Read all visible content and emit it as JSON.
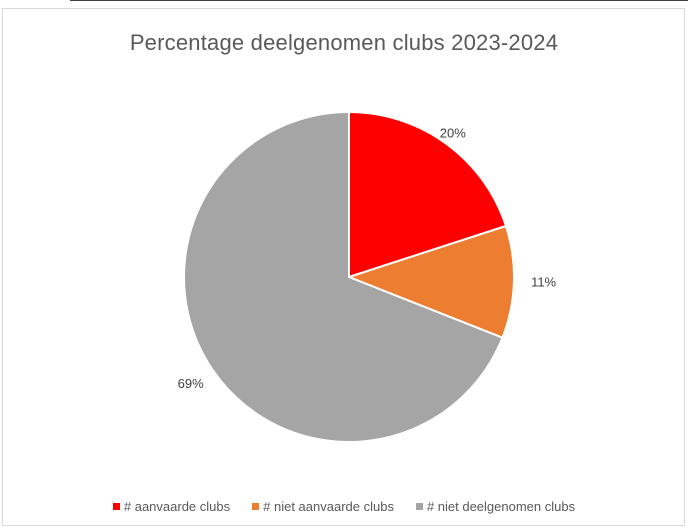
{
  "chart_data": {
    "type": "pie",
    "title": "Percentage deelgenomen clubs 2023-2024",
    "categories": [
      "# aanvaarde clubs",
      "# niet aanvaarde clubs",
      "# niet deelgenomen clubs"
    ],
    "values": [
      20,
      11,
      69
    ],
    "labels": [
      "20%",
      "11%",
      "69%"
    ],
    "colors": [
      "#ff0000",
      "#ed7d31",
      "#a5a5a5"
    ],
    "legend_position": "bottom"
  }
}
